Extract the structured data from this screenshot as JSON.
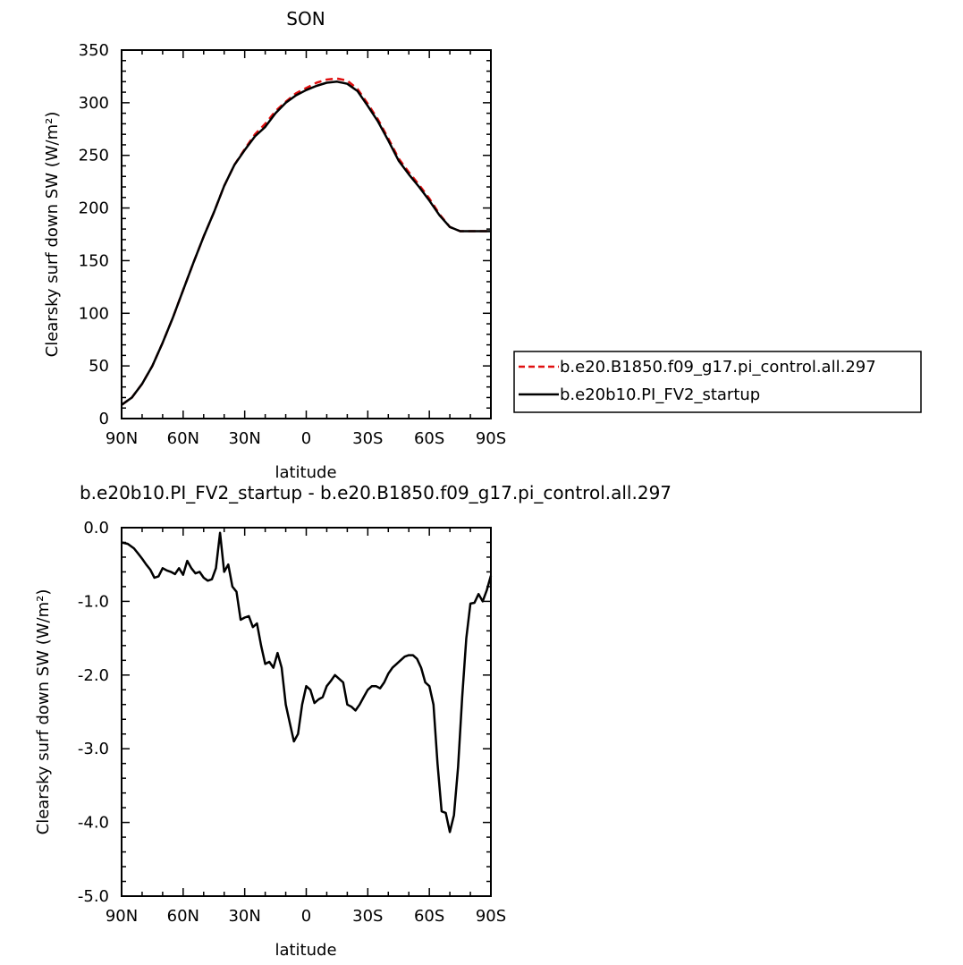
{
  "chart_data": [
    {
      "type": "line",
      "title": "SON",
      "xlabel": "latitude",
      "ylabel": "Clearsky surf down SW (W/m²)",
      "x_ticks": [
        "90N",
        "60N",
        "30N",
        "0",
        "30S",
        "60S",
        "90S"
      ],
      "x_tick_values": [
        -90,
        -60,
        -30,
        0,
        30,
        60,
        90
      ],
      "xlim": [
        -90,
        90
      ],
      "ylim": [
        0,
        350
      ],
      "y_ticks": [
        "0",
        "50",
        "100",
        "150",
        "200",
        "250",
        "300",
        "350"
      ],
      "y_tick_values": [
        0,
        50,
        100,
        150,
        200,
        250,
        300,
        350
      ],
      "grid": false,
      "legend": "right, outside plot",
      "x": [
        -90,
        -85,
        -80,
        -75,
        -70,
        -65,
        -60,
        -55,
        -50,
        -45,
        -40,
        -35,
        -30,
        -25,
        -20,
        -15,
        -10,
        -5,
        0,
        5,
        10,
        15,
        20,
        25,
        30,
        35,
        40,
        45,
        50,
        55,
        60,
        65,
        70,
        75,
        80,
        85,
        90
      ],
      "series": [
        {
          "name": "b.e20.B1850.f09_g17.pi_control.all.297",
          "color": "#e01010",
          "dash": "dashed",
          "values": [
            13,
            20,
            33,
            50,
            72,
            96,
            122,
            148,
            173,
            196,
            221,
            241,
            256,
            270,
            280,
            292,
            301,
            309,
            314,
            319,
            322,
            323,
            321,
            313,
            299,
            284,
            266,
            247,
            234,
            222,
            209,
            194,
            182,
            178,
            178,
            178,
            178
          ]
        },
        {
          "name": "b.e20b10.PI_FV2_startup",
          "color": "#000000",
          "dash": "solid",
          "values": [
            13,
            20,
            33,
            50,
            72,
            96,
            122,
            148,
            173,
            196,
            221,
            241,
            255,
            268,
            277,
            290,
            300,
            307,
            312,
            316,
            319,
            320,
            318,
            311,
            297,
            282,
            264,
            245,
            232,
            220,
            207,
            193,
            182,
            178,
            178,
            178,
            178
          ]
        }
      ]
    },
    {
      "type": "line",
      "title": "b.e20b10.PI_FV2_startup - b.e20.B1850.f09_g17.pi_control.all.297",
      "xlabel": "latitude",
      "ylabel": "Clearsky surf down SW (W/m²)",
      "x_ticks": [
        "90N",
        "60N",
        "30N",
        "0",
        "30S",
        "60S",
        "90S"
      ],
      "x_tick_values": [
        -90,
        -60,
        -30,
        0,
        30,
        60,
        90
      ],
      "xlim": [
        -90,
        90
      ],
      "ylim": [
        -5,
        0
      ],
      "y_ticks": [
        "-5.0",
        "-4.0",
        "-3.0",
        "-2.0",
        "-1.0",
        "0.0"
      ],
      "y_tick_values": [
        -5,
        -4,
        -3,
        -2,
        -1,
        0
      ],
      "grid": false,
      "x": [
        -90,
        -87,
        -84,
        -82,
        -80,
        -78,
        -76,
        -74,
        -72,
        -70,
        -68,
        -66,
        -64,
        -62,
        -60,
        -58,
        -56,
        -54,
        -52,
        -50,
        -48,
        -46,
        -44,
        -42,
        -40,
        -38,
        -36,
        -34,
        -32,
        -30,
        -28,
        -26,
        -24,
        -22,
        -20,
        -18,
        -16,
        -14,
        -12,
        -10,
        -8,
        -6,
        -4,
        -2,
        0,
        2,
        4,
        6,
        8,
        10,
        12,
        14,
        16,
        18,
        20,
        22,
        24,
        26,
        28,
        30,
        32,
        34,
        36,
        38,
        40,
        42,
        44,
        46,
        48,
        50,
        52,
        54,
        56,
        58,
        60,
        62,
        64,
        66,
        68,
        70,
        72,
        74,
        76,
        78,
        80,
        82,
        84,
        86,
        88,
        90
      ],
      "series": [
        {
          "name": "",
          "color": "#000000",
          "dash": "solid",
          "values": [
            -0.2,
            -0.22,
            -0.28,
            -0.35,
            -0.42,
            -0.5,
            -0.57,
            -0.68,
            -0.66,
            -0.55,
            -0.58,
            -0.6,
            -0.63,
            -0.55,
            -0.64,
            -0.45,
            -0.55,
            -0.62,
            -0.6,
            -0.68,
            -0.72,
            -0.7,
            -0.55,
            -0.07,
            -0.6,
            -0.5,
            -0.8,
            -0.87,
            -1.25,
            -1.22,
            -1.2,
            -1.35,
            -1.3,
            -1.6,
            -1.85,
            -1.82,
            -1.9,
            -1.7,
            -1.9,
            -2.4,
            -2.65,
            -2.9,
            -2.8,
            -2.4,
            -2.15,
            -2.2,
            -2.38,
            -2.33,
            -2.3,
            -2.15,
            -2.08,
            -2.0,
            -2.05,
            -2.1,
            -2.4,
            -2.43,
            -2.48,
            -2.4,
            -2.3,
            -2.2,
            -2.15,
            -2.15,
            -2.18,
            -2.1,
            -1.98,
            -1.9,
            -1.85,
            -1.8,
            -1.75,
            -1.73,
            -1.73,
            -1.78,
            -1.9,
            -2.1,
            -2.15,
            -2.4,
            -3.2,
            -3.85,
            -3.87,
            -4.13,
            -3.9,
            -3.25,
            -2.3,
            -1.5,
            -1.03,
            -1.02,
            -0.9,
            -1.0,
            -0.85,
            -0.65
          ]
        }
      ]
    }
  ]
}
